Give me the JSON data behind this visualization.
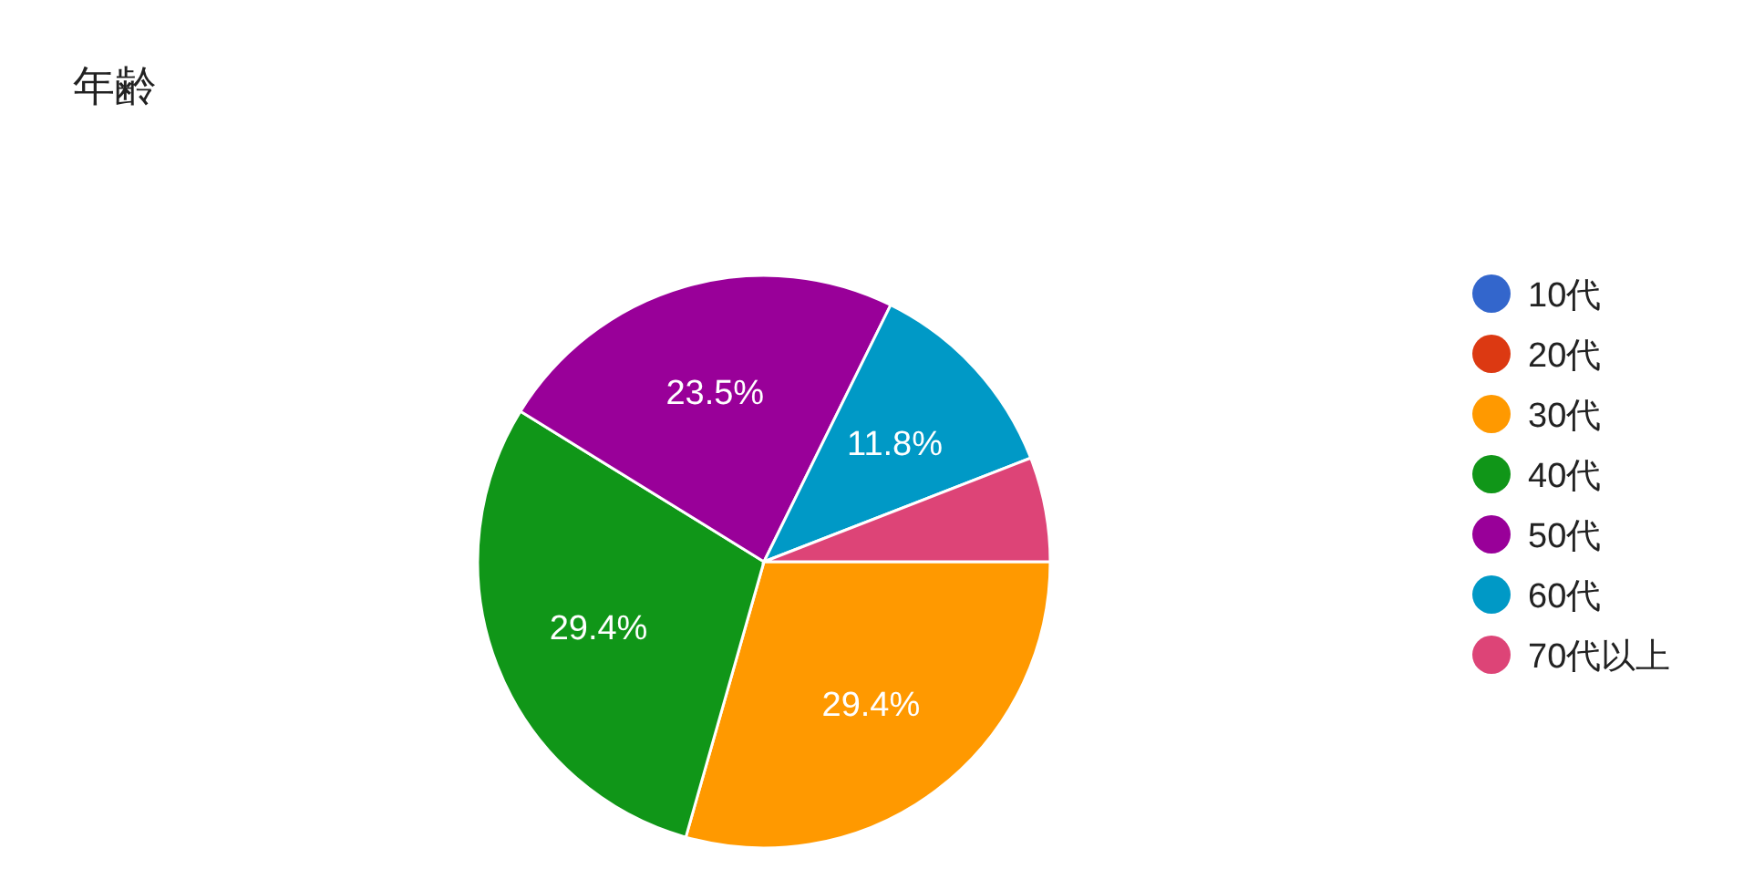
{
  "chart_data": {
    "type": "pie",
    "title": "年齢",
    "categories": [
      "10代",
      "20代",
      "30代",
      "40代",
      "50代",
      "60代",
      "70代以上"
    ],
    "values": [
      0,
      0,
      29.4,
      29.4,
      23.5,
      11.8,
      5.9
    ],
    "colors": [
      "#3366cc",
      "#dc3912",
      "#ff9900",
      "#109618",
      "#990099",
      "#0099c6",
      "#dd4477"
    ],
    "value_labels": [
      null,
      null,
      "29.4%",
      "29.4%",
      "23.5%",
      "11.8%",
      null
    ],
    "legend": "right"
  }
}
